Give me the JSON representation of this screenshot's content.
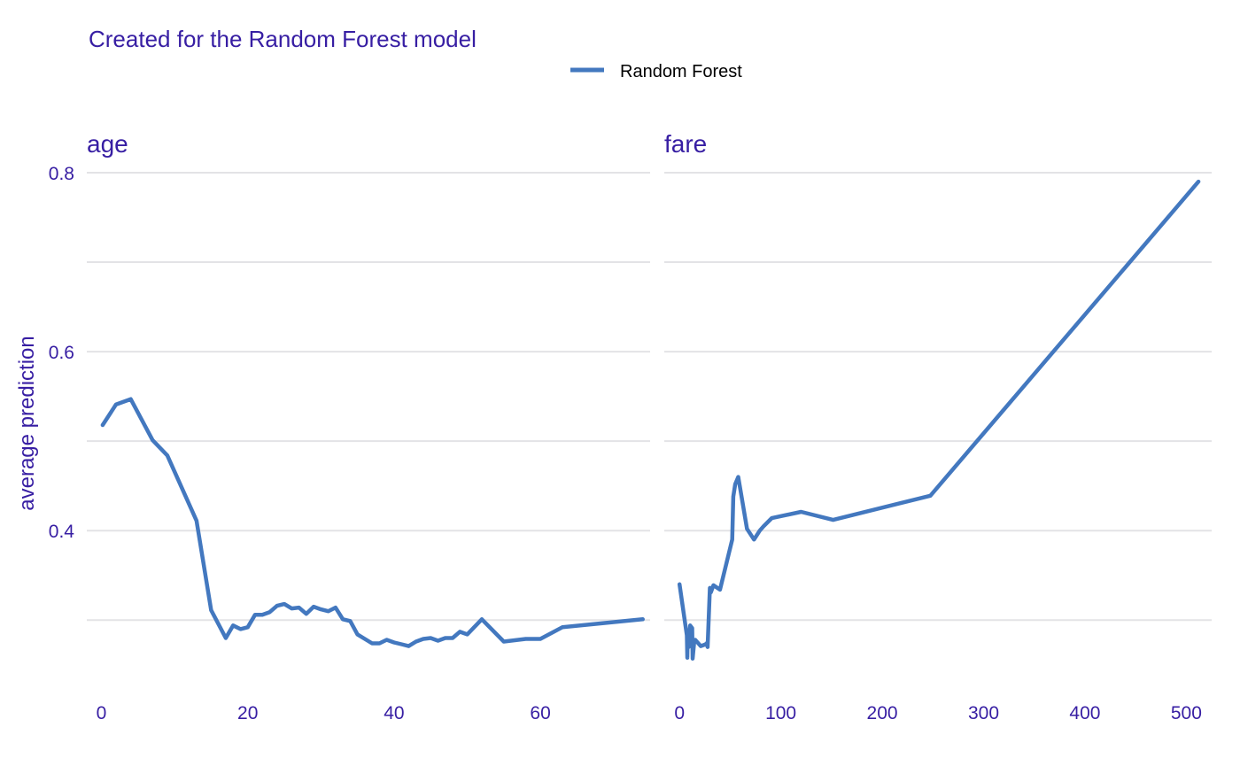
{
  "chart_data": {
    "type": "line",
    "subtitle": "Created for the Random Forest model",
    "ylabel": "average prediction",
    "ylim": [
      0.23,
      0.8
    ],
    "yticks": [
      0.4,
      0.6,
      0.8
    ],
    "ygrid": [
      0.3,
      0.4,
      0.5,
      0.6,
      0.7,
      0.8
    ],
    "grid": true,
    "legend": {
      "placement": "top-center",
      "entries": [
        {
          "name": "Random Forest",
          "color": "#4378bf"
        }
      ]
    },
    "panels": [
      {
        "title": "age",
        "xlim": [
          -2,
          75
        ],
        "xticks": [
          0,
          20,
          40,
          60
        ],
        "series": [
          {
            "name": "Random Forest",
            "color": "#4378bf",
            "x": [
              0.17,
              2,
              4,
              7,
              9,
              13,
              15,
              17,
              18,
              19,
              20,
              21,
              22,
              23,
              24,
              25,
              26,
              27,
              28,
              29,
              30,
              31,
              32,
              33,
              34,
              35,
              36,
              37,
              38,
              39,
              40,
              41,
              42,
              43,
              44,
              45,
              46,
              47,
              48,
              49,
              50,
              52,
              55,
              58,
              60,
              63,
              74
            ],
            "y": [
              0.518,
              0.541,
              0.547,
              0.501,
              0.484,
              0.411,
              0.311,
              0.28,
              0.294,
              0.29,
              0.292,
              0.306,
              0.306,
              0.309,
              0.316,
              0.318,
              0.313,
              0.314,
              0.307,
              0.315,
              0.312,
              0.31,
              0.314,
              0.301,
              0.299,
              0.284,
              0.279,
              0.274,
              0.274,
              0.278,
              0.275,
              0.273,
              0.271,
              0.276,
              0.279,
              0.28,
              0.277,
              0.28,
              0.28,
              0.287,
              0.284,
              0.301,
              0.276,
              0.279,
              0.279,
              0.292,
              0.301
            ]
          }
        ]
      },
      {
        "title": "fare",
        "xlim": [
          -15,
          525
        ],
        "xticks": [
          0,
          100,
          200,
          300,
          400,
          500
        ],
        "series": [
          {
            "name": "Random Forest",
            "color": "#4378bf",
            "x": [
              0,
              7.3,
              7.75,
              8.05,
              9,
              10.5,
              12.5,
              13,
              14.5,
              15.5,
              21,
              26,
              26.55,
              27.7,
              30,
              31,
              33.5,
              40,
              52,
              53.1,
              55,
              57.98,
              66.6,
              73.5,
              79.2,
              83,
              91,
              120,
              151.55,
              247.5,
              512
            ],
            "y": [
              0.34,
              0.283,
              0.258,
              0.282,
              0.27,
              0.294,
              0.291,
              0.257,
              0.276,
              0.278,
              0.271,
              0.273,
              0.274,
              0.27,
              0.336,
              0.331,
              0.339,
              0.334,
              0.39,
              0.438,
              0.452,
              0.46,
              0.402,
              0.39,
              0.4,
              0.405,
              0.414,
              0.421,
              0.412,
              0.439,
              0.79
            ]
          }
        ]
      }
    ]
  }
}
